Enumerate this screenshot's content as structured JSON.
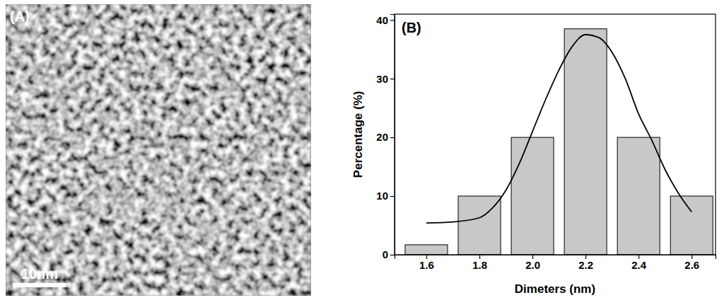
{
  "panel_a": {
    "label": "(A)",
    "scale_bar": "10nm"
  },
  "chart_data": {
    "type": "bar",
    "panel_label": "(B)",
    "x_label": "Dimeters (nm)",
    "y_label": "Percentage (%)",
    "xlim": [
      1.48,
      2.69
    ],
    "ylim": [
      0,
      41
    ],
    "xticks": [
      1.6,
      1.8,
      {
        "value": 2.0,
        "label": "2.0"
      },
      2.2,
      2.4,
      2.6
    ],
    "yticks": [
      0,
      10,
      20,
      30,
      40
    ],
    "series": [
      {
        "type": "bar",
        "color": "#c8c8c8",
        "x": [
          1.6,
          1.8,
          2.0,
          2.2,
          2.4,
          2.6
        ],
        "values": [
          1.7,
          10,
          20,
          38.5,
          20,
          10
        ]
      },
      {
        "type": "line",
        "color": "#000000",
        "x": [
          1.6,
          1.7,
          1.8,
          1.85,
          1.9,
          1.95,
          2.0,
          2.05,
          2.1,
          2.15,
          2.2,
          2.25,
          2.3,
          2.35,
          2.4,
          2.45,
          2.5,
          2.55,
          2.6
        ],
        "values": [
          5.4,
          5.6,
          6.3,
          8,
          11,
          15.5,
          21,
          26.5,
          31.5,
          35.5,
          37.5,
          37,
          34.5,
          30,
          24,
          19.5,
          14.5,
          10.5,
          7.3
        ]
      }
    ]
  }
}
